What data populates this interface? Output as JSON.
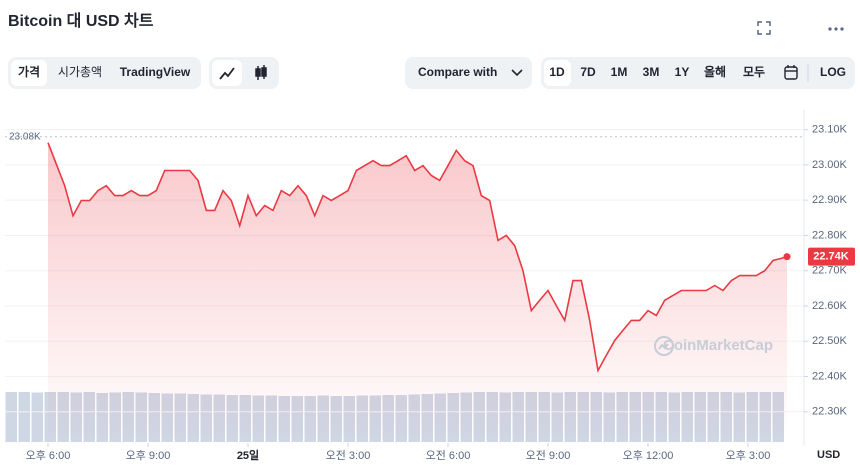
{
  "header": {
    "title": "Bitcoin 대 USD 차트"
  },
  "toolbar": {
    "views": [
      "가격",
      "시가총액",
      "TradingView"
    ],
    "compare": "Compare with",
    "ranges": [
      "1D",
      "7D",
      "1M",
      "3M",
      "1Y",
      "올해",
      "모두"
    ],
    "log": "LOG"
  },
  "chart_data": {
    "type": "area",
    "series": [
      {
        "name": "Bitcoin",
        "color": "#ea3943",
        "x": [
          0,
          0.5,
          0.75,
          1,
          1.25,
          1.5,
          1.75,
          2,
          2.25,
          2.5,
          2.75,
          3,
          3.25,
          3.5,
          3.75,
          4,
          4.25,
          4.5,
          4.75,
          5,
          5.25,
          5.5,
          5.75,
          6,
          6.25,
          6.5,
          6.75,
          7,
          7.25,
          7.5,
          7.75,
          8,
          8.25,
          8.5,
          8.75,
          9,
          9.25,
          9.5,
          9.75,
          10,
          10.25,
          10.5,
          10.75,
          11,
          11.25,
          11.5,
          11.75,
          12,
          12.25,
          12.5,
          12.75,
          13,
          13.25,
          13.5,
          13.75,
          14,
          14.25,
          14.5,
          14.75,
          15,
          15.25,
          15.5,
          15.75,
          16,
          16.25,
          16.5,
          16.75,
          17,
          17.25,
          17.5,
          17.75,
          18,
          18.25,
          18.5,
          18.75,
          19,
          19.25,
          19.5,
          19.75,
          20,
          20.25,
          20.5,
          20.75,
          21,
          21.25,
          21.5,
          21.75,
          22,
          22.17
        ],
        "values": [
          23063,
          22941,
          22856,
          22899,
          22899,
          22927,
          22941,
          22913,
          22913,
          22927,
          22913,
          22913,
          22927,
          22984,
          22984,
          22984,
          22984,
          22956,
          22871,
          22871,
          22927,
          22899,
          22828,
          22913,
          22856,
          22885,
          22871,
          22927,
          22913,
          22941,
          22913,
          22856,
          22913,
          22899,
          22913,
          22927,
          22984,
          22998,
          23012,
          22998,
          22998,
          23012,
          23026,
          22984,
          22998,
          22970,
          22956,
          22998,
          23041,
          23012,
          22998,
          22913,
          22899,
          22786,
          22800,
          22771,
          22700,
          22587,
          22616,
          22644,
          22601,
          22559,
          22672,
          22672,
          22559,
          22417,
          22460,
          22502,
          22531,
          22559,
          22559,
          22587,
          22573,
          22616,
          22630,
          22644,
          22644,
          22644,
          22644,
          22658,
          22644,
          22672,
          22686,
          22686,
          22686,
          22700,
          22729,
          22735,
          22740
        ]
      }
    ],
    "xlim": [
      -1.29,
      22.56
    ],
    "xticks": [
      {
        "value": 0,
        "label": "오후 6:00"
      },
      {
        "value": 3,
        "label": "오후 9:00"
      },
      {
        "value": 6,
        "label": "25일"
      },
      {
        "value": 9,
        "label": "오전 3:00"
      },
      {
        "value": 12,
        "label": "오전 6:00"
      },
      {
        "value": 15,
        "label": "오전 9:00"
      },
      {
        "value": 18,
        "label": "오후 12:00"
      },
      {
        "value": 21,
        "label": "오후 3:00"
      }
    ],
    "ylim": [
      22220,
      23150
    ],
    "yticks": [
      {
        "value": 22300,
        "label": "22.30K"
      },
      {
        "value": 22400,
        "label": "22.40K"
      },
      {
        "value": 22500,
        "label": "22.50K"
      },
      {
        "value": 22600,
        "label": "22.60K"
      },
      {
        "value": 22700,
        "label": "22.70K"
      },
      {
        "value": 22800,
        "label": "22.80K"
      },
      {
        "value": 22900,
        "label": "22.90K"
      },
      {
        "value": 23000,
        "label": "23.00K"
      },
      {
        "value": 23100,
        "label": "23.10K"
      }
    ],
    "grid": true,
    "high": {
      "value": 23080,
      "label": "23.08K"
    },
    "last": {
      "value": 22740,
      "label": "22.74K"
    },
    "y_axis_label": "USD",
    "watermark": "CoinMarketCap",
    "volume": {
      "color": "#cfd6e4",
      "ylim": [
        0,
        100
      ],
      "values": [
        100,
        100,
        99,
        100,
        100,
        99,
        100,
        98,
        99,
        100,
        99,
        98,
        97,
        97,
        96,
        95,
        95,
        94,
        94,
        93,
        93,
        92,
        92,
        92,
        93,
        92,
        92,
        93,
        93,
        94,
        94,
        95,
        96,
        97,
        98,
        99,
        100,
        100,
        99,
        100,
        100,
        100,
        99,
        100,
        100,
        100,
        99,
        100,
        100,
        100,
        100,
        99,
        100,
        100,
        100,
        100,
        99,
        100,
        100,
        100
      ]
    }
  }
}
